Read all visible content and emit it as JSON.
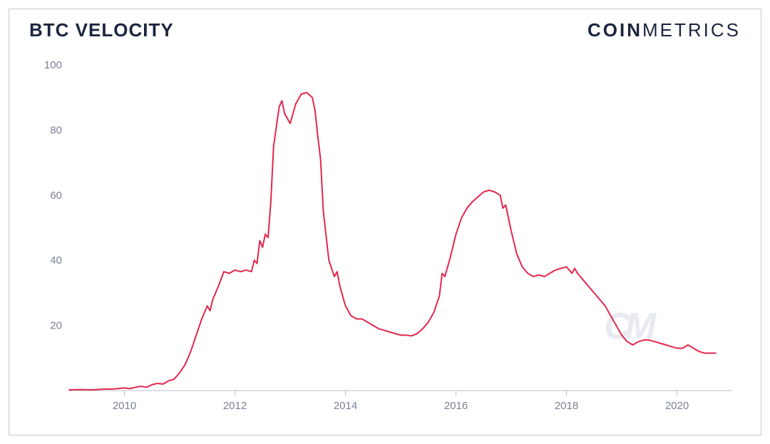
{
  "header": {
    "title": "BTC VELOCITY",
    "brand_bold": "COIN",
    "brand_light": "METRICS"
  },
  "chart": {
    "type": "line",
    "background_color": "#ffffff",
    "border_color": "#c5c9d6",
    "line_color": "#e4274c",
    "axis_color": "#b8bdd0",
    "label_color": "#7a8099",
    "label_fontsize": 15,
    "line_width": 2,
    "xlim": [
      2009,
      2021
    ],
    "ylim": [
      0,
      100
    ],
    "ytick_step": 20,
    "yticks": [
      0,
      20,
      40,
      60,
      80,
      100
    ],
    "xticks": [
      2010,
      2012,
      2014,
      2016,
      2018,
      2020
    ],
    "watermark_text": "CM",
    "watermark_color": "#e8eaf1",
    "series": [
      {
        "x": 2009.0,
        "y": 0.2
      },
      {
        "x": 2009.2,
        "y": 0.3
      },
      {
        "x": 2009.4,
        "y": 0.2
      },
      {
        "x": 2009.6,
        "y": 0.4
      },
      {
        "x": 2009.8,
        "y": 0.5
      },
      {
        "x": 2010.0,
        "y": 0.8
      },
      {
        "x": 2010.1,
        "y": 0.6
      },
      {
        "x": 2010.2,
        "y": 1.0
      },
      {
        "x": 2010.3,
        "y": 1.3
      },
      {
        "x": 2010.4,
        "y": 1.0
      },
      {
        "x": 2010.5,
        "y": 1.8
      },
      {
        "x": 2010.6,
        "y": 2.2
      },
      {
        "x": 2010.7,
        "y": 2.0
      },
      {
        "x": 2010.8,
        "y": 3.0
      },
      {
        "x": 2010.9,
        "y": 3.5
      },
      {
        "x": 2011.0,
        "y": 5.5
      },
      {
        "x": 2011.1,
        "y": 8.0
      },
      {
        "x": 2011.2,
        "y": 12.0
      },
      {
        "x": 2011.3,
        "y": 17.0
      },
      {
        "x": 2011.4,
        "y": 22.0
      },
      {
        "x": 2011.5,
        "y": 26.0
      },
      {
        "x": 2011.55,
        "y": 24.5
      },
      {
        "x": 2011.6,
        "y": 28.0
      },
      {
        "x": 2011.7,
        "y": 32.0
      },
      {
        "x": 2011.8,
        "y": 36.5
      },
      {
        "x": 2011.9,
        "y": 36.0
      },
      {
        "x": 2012.0,
        "y": 37.0
      },
      {
        "x": 2012.1,
        "y": 36.5
      },
      {
        "x": 2012.2,
        "y": 37.0
      },
      {
        "x": 2012.3,
        "y": 36.5
      },
      {
        "x": 2012.35,
        "y": 40.0
      },
      {
        "x": 2012.4,
        "y": 39.0
      },
      {
        "x": 2012.45,
        "y": 46.0
      },
      {
        "x": 2012.5,
        "y": 44.0
      },
      {
        "x": 2012.55,
        "y": 48.0
      },
      {
        "x": 2012.6,
        "y": 47.0
      },
      {
        "x": 2012.65,
        "y": 58.0
      },
      {
        "x": 2012.7,
        "y": 75.0
      },
      {
        "x": 2012.8,
        "y": 87.0
      },
      {
        "x": 2012.85,
        "y": 89.0
      },
      {
        "x": 2012.9,
        "y": 85.0
      },
      {
        "x": 2013.0,
        "y": 82.0
      },
      {
        "x": 2013.1,
        "y": 88.0
      },
      {
        "x": 2013.2,
        "y": 91.0
      },
      {
        "x": 2013.3,
        "y": 91.5
      },
      {
        "x": 2013.4,
        "y": 90.0
      },
      {
        "x": 2013.45,
        "y": 86.0
      },
      {
        "x": 2013.5,
        "y": 78.0
      },
      {
        "x": 2013.55,
        "y": 71.0
      },
      {
        "x": 2013.6,
        "y": 55.0
      },
      {
        "x": 2013.7,
        "y": 40.0
      },
      {
        "x": 2013.8,
        "y": 35.0
      },
      {
        "x": 2013.85,
        "y": 36.5
      },
      {
        "x": 2013.9,
        "y": 32.0
      },
      {
        "x": 2014.0,
        "y": 26.0
      },
      {
        "x": 2014.1,
        "y": 23.0
      },
      {
        "x": 2014.2,
        "y": 22.0
      },
      {
        "x": 2014.3,
        "y": 22.0
      },
      {
        "x": 2014.4,
        "y": 21.0
      },
      {
        "x": 2014.5,
        "y": 20.0
      },
      {
        "x": 2014.6,
        "y": 19.0
      },
      {
        "x": 2014.7,
        "y": 18.5
      },
      {
        "x": 2014.8,
        "y": 18.0
      },
      {
        "x": 2014.9,
        "y": 17.5
      },
      {
        "x": 2015.0,
        "y": 17.0
      },
      {
        "x": 2015.1,
        "y": 17.0
      },
      {
        "x": 2015.2,
        "y": 16.8
      },
      {
        "x": 2015.3,
        "y": 17.5
      },
      {
        "x": 2015.4,
        "y": 19.0
      },
      {
        "x": 2015.5,
        "y": 21.0
      },
      {
        "x": 2015.6,
        "y": 24.0
      },
      {
        "x": 2015.7,
        "y": 29.0
      },
      {
        "x": 2015.75,
        "y": 36.0
      },
      {
        "x": 2015.8,
        "y": 35.0
      },
      {
        "x": 2015.9,
        "y": 41.0
      },
      {
        "x": 2016.0,
        "y": 48.0
      },
      {
        "x": 2016.1,
        "y": 53.0
      },
      {
        "x": 2016.2,
        "y": 56.0
      },
      {
        "x": 2016.3,
        "y": 58.0
      },
      {
        "x": 2016.4,
        "y": 59.5
      },
      {
        "x": 2016.5,
        "y": 61.0
      },
      {
        "x": 2016.6,
        "y": 61.5
      },
      {
        "x": 2016.7,
        "y": 61.0
      },
      {
        "x": 2016.8,
        "y": 60.0
      },
      {
        "x": 2016.85,
        "y": 56.0
      },
      {
        "x": 2016.9,
        "y": 57.0
      },
      {
        "x": 2017.0,
        "y": 49.0
      },
      {
        "x": 2017.1,
        "y": 42.0
      },
      {
        "x": 2017.2,
        "y": 38.0
      },
      {
        "x": 2017.3,
        "y": 36.0
      },
      {
        "x": 2017.4,
        "y": 35.0
      },
      {
        "x": 2017.5,
        "y": 35.5
      },
      {
        "x": 2017.6,
        "y": 35.0
      },
      {
        "x": 2017.7,
        "y": 36.0
      },
      {
        "x": 2017.8,
        "y": 37.0
      },
      {
        "x": 2017.9,
        "y": 37.5
      },
      {
        "x": 2018.0,
        "y": 38.0
      },
      {
        "x": 2018.1,
        "y": 36.0
      },
      {
        "x": 2018.15,
        "y": 37.5
      },
      {
        "x": 2018.2,
        "y": 36.0
      },
      {
        "x": 2018.3,
        "y": 34.0
      },
      {
        "x": 2018.4,
        "y": 32.0
      },
      {
        "x": 2018.5,
        "y": 30.0
      },
      {
        "x": 2018.6,
        "y": 28.0
      },
      {
        "x": 2018.7,
        "y": 26.0
      },
      {
        "x": 2018.8,
        "y": 23.0
      },
      {
        "x": 2018.9,
        "y": 20.0
      },
      {
        "x": 2019.0,
        "y": 17.0
      },
      {
        "x": 2019.1,
        "y": 15.0
      },
      {
        "x": 2019.2,
        "y": 14.0
      },
      {
        "x": 2019.3,
        "y": 15.0
      },
      {
        "x": 2019.4,
        "y": 15.5
      },
      {
        "x": 2019.5,
        "y": 15.5
      },
      {
        "x": 2019.6,
        "y": 15.0
      },
      {
        "x": 2019.7,
        "y": 14.5
      },
      {
        "x": 2019.8,
        "y": 14.0
      },
      {
        "x": 2019.9,
        "y": 13.5
      },
      {
        "x": 2020.0,
        "y": 13.0
      },
      {
        "x": 2020.1,
        "y": 13.0
      },
      {
        "x": 2020.2,
        "y": 14.0
      },
      {
        "x": 2020.3,
        "y": 13.0
      },
      {
        "x": 2020.4,
        "y": 12.0
      },
      {
        "x": 2020.5,
        "y": 11.5
      },
      {
        "x": 2020.6,
        "y": 11.5
      },
      {
        "x": 2020.7,
        "y": 11.5
      }
    ]
  }
}
